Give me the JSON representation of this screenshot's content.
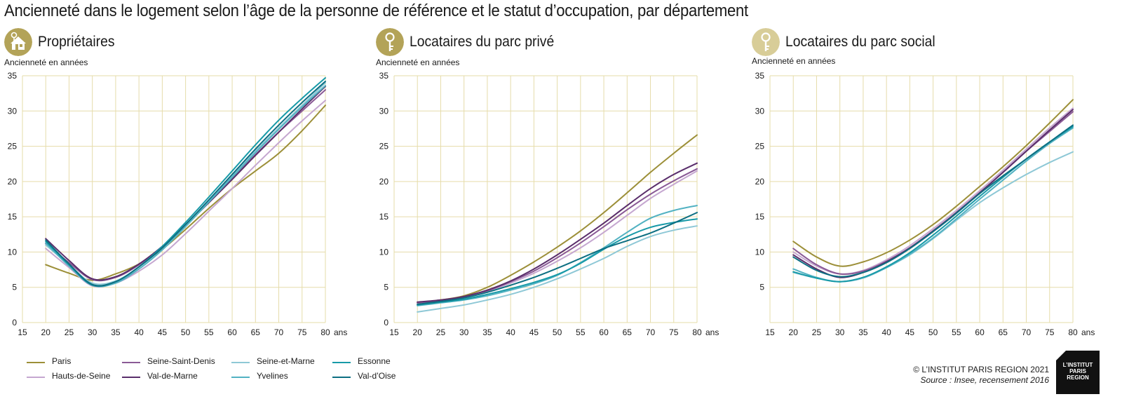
{
  "title": "Ancienneté dans le logement selon l’âge de la personne de référence et le statut d’occupation, par département",
  "colors": {
    "grid": "#e6dcaa",
    "axis": "#1a1a1a",
    "icon_bg": "#b3a358"
  },
  "series_colors": {
    "Paris": "#9c8f38",
    "Hauts-de-Seine": "#c5a7d0",
    "Seine-Saint-Denis": "#8a5a96",
    "Val-de-Marne": "#5a2e6b",
    "Seine-et-Marne": "#8ec8d6",
    "Yvelines": "#52b2c2",
    "Essonne": "#189aa8",
    "Val-d’Oise": "#0d6f82"
  },
  "legend": [
    "Paris",
    "Seine-Saint-Denis",
    "Seine-et-Marne",
    "Essonne",
    "Hauts-de-Seine",
    "Val-de-Marne",
    "Yvelines",
    "Val-d’Oise"
  ],
  "credits": {
    "copyright": "© L’INSTITUT PARIS REGION 2021",
    "source": "Source : Insee, recensement 2016"
  },
  "logo": [
    "L’INSTITUT",
    "PARIS",
    "REGION"
  ],
  "chart_data": [
    {
      "type": "line",
      "title": "Propriétaires",
      "icon": "house-key-icon",
      "ylabel": "Ancienneté en années",
      "x_unit": "ans",
      "xlim": [
        15,
        80
      ],
      "ylim": [
        0,
        35
      ],
      "xticks": [
        15,
        20,
        25,
        30,
        35,
        40,
        45,
        50,
        55,
        60,
        65,
        70,
        75,
        80
      ],
      "yticks": [
        0,
        5,
        10,
        15,
        20,
        25,
        30,
        35
      ],
      "grid": true,
      "x": [
        20,
        25,
        30,
        35,
        40,
        45,
        50,
        55,
        60,
        65,
        70,
        75,
        80
      ],
      "series": [
        {
          "name": "Paris",
          "values": [
            8.2,
            7.0,
            6.0,
            6.9,
            8.3,
            10.4,
            13.2,
            16.2,
            19.0,
            21.5,
            24.0,
            27.2,
            30.8
          ]
        },
        {
          "name": "Hauts-de-Seine",
          "values": [
            10.5,
            7.8,
            5.2,
            5.6,
            7.3,
            9.6,
            12.6,
            15.8,
            19.0,
            22.3,
            25.5,
            28.6,
            31.5
          ]
        },
        {
          "name": "Seine-Saint-Denis",
          "values": [
            11.2,
            8.5,
            6.1,
            6.4,
            8.2,
            10.8,
            13.9,
            17.2,
            20.5,
            23.8,
            27.0,
            30.0,
            33.0
          ]
        },
        {
          "name": "Val-de-Marne",
          "values": [
            11.9,
            8.8,
            6.2,
            6.5,
            8.3,
            10.8,
            13.8,
            17.0,
            20.3,
            23.7,
            27.0,
            30.3,
            33.5
          ]
        },
        {
          "name": "Seine-et-Marne",
          "values": [
            11.0,
            8.2,
            5.6,
            5.9,
            7.9,
            10.6,
            13.8,
            17.3,
            20.8,
            24.3,
            27.6,
            30.8,
            34.0
          ]
        },
        {
          "name": "Yvelines",
          "values": [
            11.3,
            8.0,
            5.3,
            5.6,
            7.6,
            10.3,
            13.6,
            17.1,
            20.6,
            24.1,
            27.4,
            30.6,
            33.6
          ]
        },
        {
          "name": "Essonne",
          "values": [
            11.5,
            8.2,
            5.3,
            5.8,
            7.9,
            10.8,
            14.2,
            17.8,
            21.5,
            25.2,
            28.7,
            31.8,
            34.7
          ]
        },
        {
          "name": "Val-d’Oise",
          "values": [
            11.7,
            8.3,
            5.4,
            5.8,
            7.9,
            10.6,
            13.9,
            17.4,
            21.0,
            24.6,
            28.0,
            31.2,
            34.2
          ]
        }
      ]
    },
    {
      "type": "line",
      "title": "Locataires du parc privé",
      "icon": "key-icon",
      "ylabel": "Ancienneté en années",
      "x_unit": "ans",
      "xlim": [
        15,
        80
      ],
      "ylim": [
        0,
        35
      ],
      "xticks": [
        15,
        20,
        25,
        30,
        35,
        40,
        45,
        50,
        55,
        60,
        65,
        70,
        75,
        80
      ],
      "yticks": [
        0,
        5,
        10,
        15,
        20,
        25,
        30,
        35
      ],
      "grid": true,
      "x": [
        20,
        25,
        30,
        35,
        40,
        45,
        50,
        55,
        60,
        65,
        70,
        75,
        80
      ],
      "series": [
        {
          "name": "Paris",
          "values": [
            2.8,
            3.2,
            3.8,
            5.0,
            6.7,
            8.6,
            10.7,
            13.0,
            15.6,
            18.4,
            21.3,
            24.0,
            26.6
          ]
        },
        {
          "name": "Hauts-de-Seine",
          "values": [
            2.6,
            3.0,
            3.5,
            4.4,
            5.6,
            7.0,
            8.7,
            10.6,
            12.8,
            15.2,
            17.6,
            19.6,
            21.5
          ]
        },
        {
          "name": "Seine-Saint-Denis",
          "values": [
            2.8,
            3.1,
            3.6,
            4.5,
            5.8,
            7.3,
            9.2,
            11.3,
            13.6,
            16.0,
            18.2,
            20.1,
            21.8
          ]
        },
        {
          "name": "Val-de-Marne",
          "values": [
            2.9,
            3.2,
            3.7,
            4.6,
            5.9,
            7.6,
            9.6,
            11.8,
            14.1,
            16.6,
            19.0,
            21.0,
            22.6
          ]
        },
        {
          "name": "Seine-et-Marne",
          "values": [
            1.5,
            2.0,
            2.5,
            3.2,
            4.0,
            5.0,
            6.2,
            7.6,
            9.1,
            10.8,
            12.2,
            13.1,
            13.7
          ]
        },
        {
          "name": "Yvelines",
          "values": [
            2.4,
            2.8,
            3.2,
            3.8,
            4.6,
            5.5,
            6.7,
            8.5,
            10.6,
            12.8,
            14.8,
            15.9,
            16.6
          ]
        },
        {
          "name": "Essonne",
          "values": [
            2.5,
            2.9,
            3.3,
            4.0,
            4.8,
            5.7,
            6.8,
            8.4,
            10.4,
            12.2,
            13.5,
            14.2,
            14.7
          ]
        },
        {
          "name": "Val-d’Oise",
          "values": [
            2.6,
            3.0,
            3.5,
            4.3,
            5.3,
            6.4,
            7.7,
            9.1,
            10.5,
            11.6,
            12.7,
            14.1,
            15.6
          ]
        }
      ]
    },
    {
      "type": "line",
      "title": "Locataires du parc social",
      "icon": "key-icon",
      "ylabel": "Ancienneté en années",
      "x_unit": "ans",
      "xlim": [
        15,
        80
      ],
      "ylim": [
        0,
        35
      ],
      "xticks": [
        15,
        20,
        25,
        30,
        35,
        40,
        45,
        50,
        55,
        60,
        65,
        70,
        75,
        80
      ],
      "yticks": [
        5,
        10,
        15,
        20,
        25,
        30,
        35
      ],
      "grid": true,
      "x": [
        20,
        25,
        30,
        35,
        40,
        45,
        50,
        55,
        60,
        65,
        70,
        75,
        80
      ],
      "series": [
        {
          "name": "Paris",
          "values": [
            11.5,
            9.3,
            8.0,
            8.6,
            9.9,
            11.7,
            13.9,
            16.5,
            19.3,
            22.1,
            25.1,
            28.3,
            31.6
          ]
        },
        {
          "name": "Hauts-de-Seine",
          "values": [
            10.0,
            8.0,
            6.9,
            7.4,
            8.9,
            10.9,
            13.3,
            15.9,
            18.7,
            21.6,
            24.6,
            27.6,
            30.4
          ]
        },
        {
          "name": "Seine-Saint-Denis",
          "values": [
            10.5,
            8.2,
            6.9,
            7.3,
            8.7,
            10.6,
            13.0,
            15.6,
            18.4,
            21.3,
            24.3,
            27.1,
            29.9
          ]
        },
        {
          "name": "Val-de-Marne",
          "values": [
            9.6,
            7.6,
            6.4,
            7.1,
            8.6,
            10.6,
            13.0,
            15.6,
            18.4,
            21.3,
            24.3,
            27.3,
            30.2
          ]
        },
        {
          "name": "Seine-et-Marne",
          "values": [
            7.1,
            6.3,
            5.8,
            6.3,
            7.8,
            9.6,
            11.9,
            14.5,
            17.0,
            19.1,
            21.0,
            22.7,
            24.2
          ]
        },
        {
          "name": "Yvelines",
          "values": [
            7.6,
            6.4,
            5.8,
            6.4,
            7.8,
            9.7,
            12.0,
            14.7,
            17.5,
            20.2,
            22.9,
            25.4,
            27.6
          ]
        },
        {
          "name": "Essonne",
          "values": [
            7.2,
            6.3,
            5.8,
            6.4,
            7.9,
            9.9,
            12.4,
            15.1,
            17.9,
            20.6,
            23.2,
            25.6,
            27.8
          ]
        },
        {
          "name": "Val-d’Oise",
          "values": [
            9.3,
            7.4,
            6.5,
            7.1,
            8.5,
            10.5,
            12.9,
            15.5,
            18.3,
            20.8,
            23.2,
            25.6,
            28.0
          ]
        }
      ]
    }
  ]
}
